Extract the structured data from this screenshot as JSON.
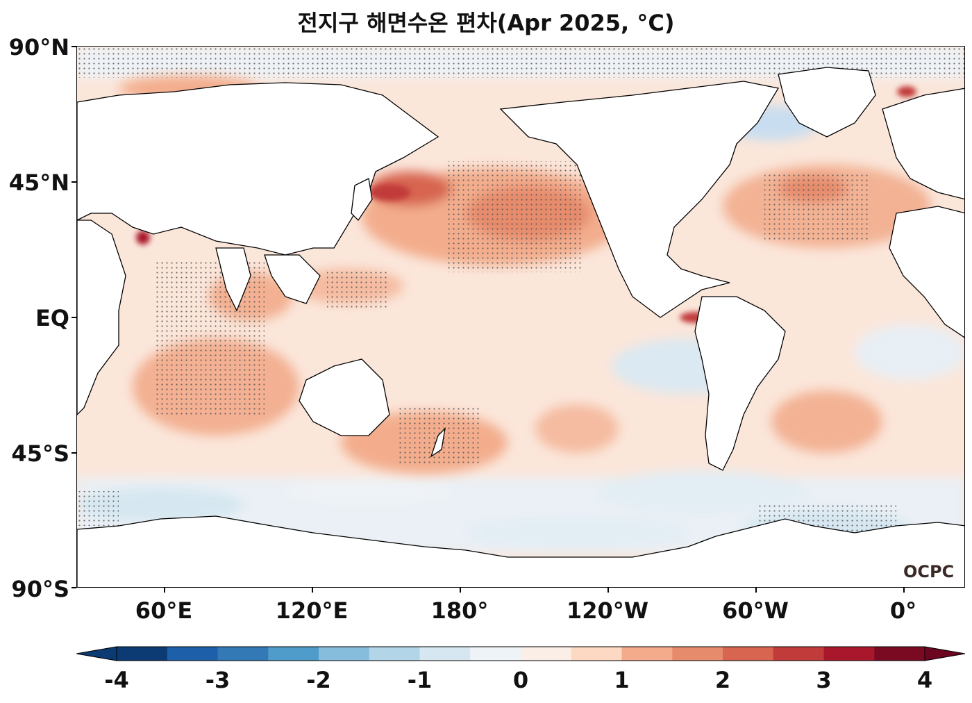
{
  "title": "전지구 해면수온 편차(Apr 2025, °C)",
  "lat_labels": [
    "90°N",
    "45°N",
    "EQ",
    "45°S",
    "90°S"
  ],
  "lon_labels": [
    "60°E",
    "120°E",
    "180°",
    "120°W",
    "60°W",
    "0°"
  ],
  "logo": "OCPC",
  "colorbar": {
    "labels": [
      "-4",
      "-3",
      "-2",
      "-1",
      "0",
      "1",
      "2",
      "3",
      "4"
    ],
    "colors": [
      "#0b3b72",
      "#1d5fa9",
      "#3279b6",
      "#4f9bc9",
      "#86bcdc",
      "#b2d5e8",
      "#d6e7f1",
      "#eef3f7",
      "#fbeee7",
      "#fdd9c4",
      "#f4ab8c",
      "#e68c6d",
      "#d7654f",
      "#c13b3a",
      "#a8172b",
      "#7a0a22"
    ],
    "min_color": "#0b3b72",
    "max_color": "#6b0520"
  },
  "map": {
    "ocean_base_color": "#fce3d5",
    "land_color": "#ffffff",
    "coast_color": "#000000"
  }
}
